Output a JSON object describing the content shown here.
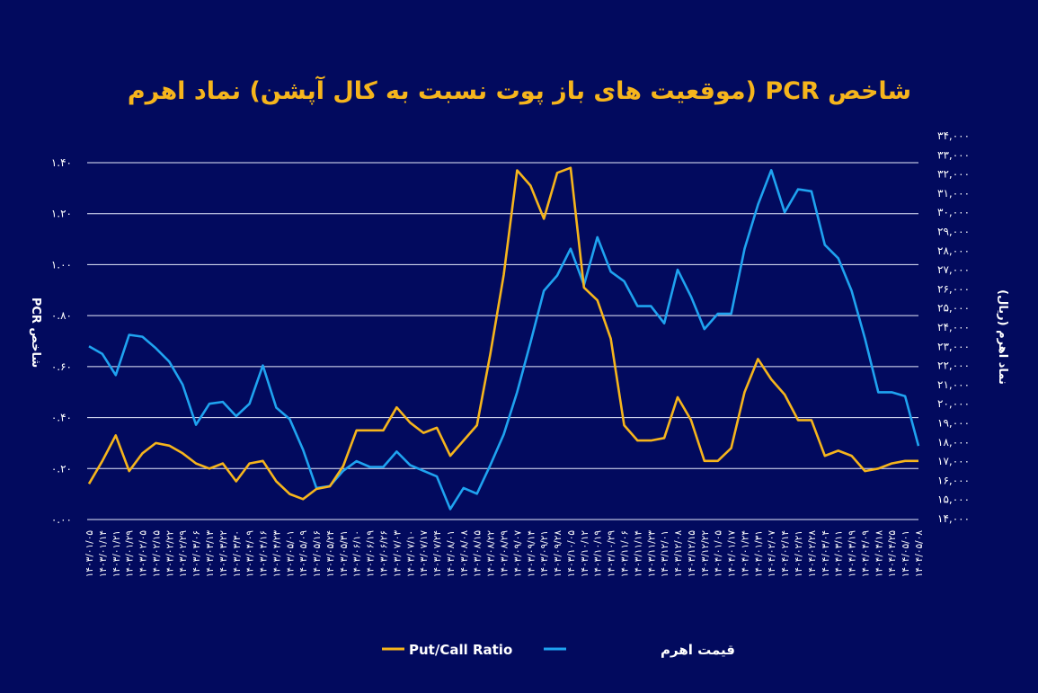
{
  "chart_data": {
    "type": "line",
    "title": "شاخص PCR (موقعیت های باز پوت نسبت به کال آپشن) نماد اهرم",
    "ylabel_left": "شاخص PCR",
    "ylabel_right": "نماد اهرم (ریال)",
    "xlabel": "",
    "ylim_left": [
      0,
      1.4
    ],
    "ylim_right": [
      14000,
      34000
    ],
    "yticks_left": [
      "۰.۰۰",
      "۰.۲۰",
      "۰.۴۰",
      "۰.۶۰",
      "۰.۸۰",
      "۱.۰۰",
      "۱.۲۰",
      "۱.۴۰"
    ],
    "yticks_left_values": [
      0,
      0.2,
      0.4,
      0.6,
      0.8,
      1.0,
      1.2,
      1.4
    ],
    "yticks_right": [
      "۱۴,۰۰۰",
      "۱۵,۰۰۰",
      "۱۶,۰۰۰",
      "۱۷,۰۰۰",
      "۱۸,۰۰۰",
      "۱۹,۰۰۰",
      "۲۰,۰۰۰",
      "۲۱,۰۰۰",
      "۲۲,۰۰۰",
      "۲۳,۰۰۰",
      "۲۴,۰۰۰",
      "۲۵,۰۰۰",
      "۲۶,۰۰۰",
      "۲۷,۰۰۰",
      "۲۸,۰۰۰",
      "۲۹,۰۰۰",
      "۳۰,۰۰۰",
      "۳۱,۰۰۰",
      "۳۲,۰۰۰",
      "۳۳,۰۰۰",
      "۳۴,۰۰۰"
    ],
    "yticks_right_values": [
      14000,
      15000,
      16000,
      17000,
      18000,
      19000,
      20000,
      21000,
      22000,
      23000,
      24000,
      25000,
      26000,
      27000,
      28000,
      29000,
      30000,
      31000,
      32000,
      33000,
      34000
    ],
    "grid": true,
    "legend_position": "bottom",
    "categories": [
      "۱۴۰۳/۰۱/۰۵",
      "۱۴۰۳/۰۱/۱۴",
      "۱۴۰۳/۰۱/۲۱",
      "۱۴۰۳/۰۱/۲۹",
      "۱۴۰۳/۰۲/۰۵",
      "۱۴۰۳/۰۲/۱۵",
      "۱۴۰۳/۰۲/۲۲",
      "۱۴۰۳/۰۲/۲۹",
      "۱۴۰۳/۰۳/۰۶",
      "۱۴۰۳/۰۳/۱۳",
      "۱۴۰۳/۰۳/۲۲",
      "۱۴۰۳/۰۳/۳۰",
      "۱۴۰۳/۰۴/۰۹",
      "۱۴۰۳/۰۴/۱۶",
      "۱۴۰۳/۰۴/۲۳",
      "۱۴۰۳/۰۵/۰۱",
      "۱۴۰۳/۰۵/۰۹",
      "۱۴۰۳/۰۵/۱۶",
      "۱۴۰۳/۰۵/۲۴",
      "۱۴۰۳/۰۵/۳۱",
      "۱۴۰۳/۰۶/۱۰",
      "۱۴۰۳/۰۶/۱۹",
      "۱۴۰۳/۰۶/۲۶",
      "۱۴۰۳/۰۷/۰۳",
      "۱۴۰۳/۰۷/۱۰",
      "۱۴۰۳/۰۷/۱۷",
      "۱۴۰۳/۰۷/۲۴",
      "۱۴۰۳/۰۸/۰۱",
      "۱۴۰۳/۰۸/۰۸",
      "۱۴۰۳/۰۸/۱۵",
      "۱۴۰۳/۰۸/۲۲",
      "۱۴۰۳/۰۸/۲۹",
      "۱۴۰۳/۰۹/۰۷",
      "۱۴۰۳/۰۹/۱۴",
      "۱۴۰۳/۰۹/۲۱",
      "۱۴۰۳/۰۹/۲۸",
      "۱۴۰۳/۱۰/۰۵",
      "۱۴۰۳/۱۰/۱۲",
      "۱۴۰۳/۱۰/۱۹",
      "۱۴۰۳/۱۰/۲۹",
      "۱۴۰۳/۱۱/۰۶",
      "۱۴۰۳/۱۱/۱۴",
      "۱۴۰۳/۱۱/۲۳",
      "۱۴۰۳/۱۲/۰۱",
      "۱۴۰۳/۱۲/۰۸",
      "۱۴۰۳/۱۲/۱۵",
      "۱۴۰۳/۱۲/۲۲",
      "۱۴۰۴/۰۱/۰۵",
      "۱۴۰۴/۰۱/۱۷",
      "۱۴۰۴/۰۱/۲۴",
      "۱۴۰۴/۰۱/۳۱",
      "۱۴۰۴/۰۲/۰۷",
      "۱۴۰۴/۰۲/۱۴",
      "۱۴۰۴/۰۲/۲۱",
      "۱۴۰۴/۰۲/۲۸",
      "۱۴۰۴/۰۳/۰۴",
      "۱۴۰۴/۰۳/۱۱",
      "۱۴۰۴/۰۳/۱۹",
      "۱۴۰۴/۰۴/۰۹",
      "۱۴۰۴/۰۴/۱۸",
      "۱۴۰۴/۰۴/۲۵",
      "۱۴۰۴/۰۵/۰۱",
      "۱۴۰۴/۰۵/۰۸"
    ],
    "series": [
      {
        "name": "Put/Call Ratio",
        "axis": "left",
        "color": "#f6b51c",
        "values": [
          0.14,
          0.23,
          0.33,
          0.19,
          0.26,
          0.3,
          0.29,
          0.26,
          0.22,
          0.2,
          0.22,
          0.15,
          0.22,
          0.23,
          0.15,
          0.1,
          0.08,
          0.12,
          0.13,
          0.21,
          0.35,
          0.35,
          0.35,
          0.44,
          0.38,
          0.34,
          0.36,
          0.25,
          0.31,
          0.37,
          0.65,
          0.96,
          1.37,
          1.31,
          1.18,
          1.36,
          1.38,
          0.91,
          0.86,
          0.71,
          0.37,
          0.31,
          0.31,
          0.32,
          0.48,
          0.39,
          0.23,
          0.23,
          0.28,
          0.5,
          0.63,
          0.55,
          0.49,
          0.39,
          0.39,
          0.25,
          0.27,
          0.25,
          0.19,
          0.2,
          0.22,
          0.23,
          0.23
        ]
      },
      {
        "name": "قیمت اهرم",
        "axis": "right",
        "color": "#1fa3f0",
        "values": [
          23000,
          22600,
          21500,
          23600,
          23500,
          22900,
          22200,
          21000,
          18900,
          20000,
          20100,
          19350,
          20000,
          22000,
          19800,
          19200,
          17600,
          15600,
          15700,
          16500,
          17000,
          16700,
          16700,
          17500,
          16800,
          16500,
          16200,
          14500,
          15600,
          15300,
          16800,
          18400,
          20600,
          23200,
          25900,
          26700,
          28100,
          26200,
          28700,
          26900,
          26400,
          25100,
          25100,
          24200,
          27000,
          25600,
          23900,
          24700,
          24700,
          28100,
          30400,
          32200,
          30000,
          31200,
          31100,
          28300,
          27600,
          25900,
          23400,
          20600,
          20600,
          20400,
          17800
        ]
      }
    ]
  }
}
